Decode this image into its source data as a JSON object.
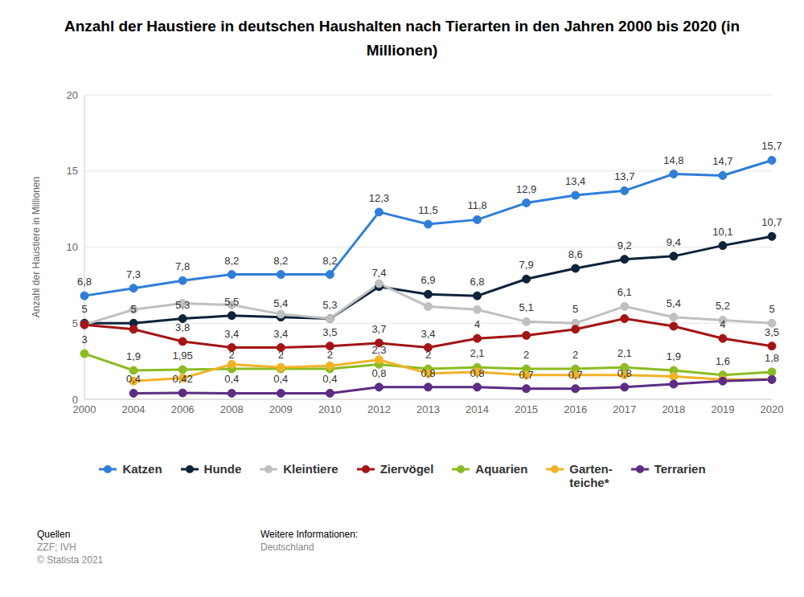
{
  "chart_data": {
    "type": "line",
    "title": "Anzahl der Haustiere in deutschen Haushalten nach Tierarten in den Jahren 2000 bis 2020 (in Millionen)",
    "y_label": "Anzahl der Haustiere in Millionen",
    "categories": [
      "2000",
      "2004",
      "2006",
      "2008",
      "2009",
      "2010",
      "2012",
      "2013",
      "2014",
      "2015",
      "2016",
      "2017",
      "2018",
      "2019",
      "2020"
    ],
    "series": [
      {
        "name": "Katzen",
        "color": "#2f7ed8",
        "values": [
          6.8,
          7.3,
          7.8,
          8.2,
          8.2,
          8.2,
          12.3,
          11.5,
          11.8,
          12.9,
          13.4,
          13.7,
          14.8,
          14.7,
          15.7
        ],
        "value_labels": [
          "6,8",
          "7,3",
          "7,8",
          "8,2",
          "8,2",
          "8,2",
          "12,3",
          "11,5",
          "11,8",
          "12,9",
          "13,4",
          "13,7",
          "14,8",
          "14,7",
          "15,7"
        ]
      },
      {
        "name": "Hunde",
        "color": "#0d233a",
        "values": [
          5,
          5,
          5.3,
          5.5,
          5.4,
          5.3,
          7.4,
          6.9,
          6.8,
          7.9,
          8.6,
          9.2,
          9.4,
          10.1,
          10.7
        ],
        "value_labels": [
          "5",
          "5",
          "5,3",
          "5,5",
          "5,4",
          "5,3",
          "7,4",
          "6,9",
          "6,8",
          "7,9",
          "8,6",
          "9,2",
          "9,4",
          "10,1",
          "10,7"
        ]
      },
      {
        "name": "Kleintiere",
        "color": "#c0c0c0",
        "values": [
          4.9,
          5.9,
          6.3,
          6.2,
          5.6,
          5.3,
          7.6,
          6.1,
          5.9,
          5.1,
          5,
          6.1,
          5.4,
          5.2,
          5
        ],
        "value_labels": [
          null,
          null,
          null,
          null,
          null,
          null,
          null,
          null,
          null,
          "5,1",
          "5",
          "6,1",
          "5,4",
          "5,2",
          "5"
        ]
      },
      {
        "name": "Ziervögel",
        "color": "#a31515",
        "values": [
          4.9,
          4.6,
          3.8,
          3.4,
          3.4,
          3.5,
          3.7,
          3.4,
          4,
          4.2,
          4.6,
          5.3,
          4.8,
          4,
          3.5
        ],
        "value_labels": [
          null,
          null,
          "3,8",
          "3,4",
          "3,4",
          "3,5",
          "3,7",
          "3,4",
          "4",
          null,
          null,
          null,
          null,
          "4",
          "3,5"
        ]
      },
      {
        "name": "Aquarien",
        "color": "#8bbc21",
        "values": [
          3,
          1.9,
          1.95,
          2,
          2,
          2,
          2.3,
          2,
          2.1,
          2,
          2,
          2.1,
          1.9,
          1.6,
          1.8
        ],
        "value_labels": [
          "3",
          "1,9",
          "1,95",
          "2",
          "2",
          "2",
          "2,3",
          "2",
          "2,1",
          "2",
          "2",
          "2,1",
          "1,9",
          "1,6",
          "1,8"
        ]
      },
      {
        "name": "Garten-teiche*",
        "color": "#f1b326",
        "values": [
          null,
          1.2,
          1.4,
          2.3,
          2.1,
          2.2,
          2.6,
          1.7,
          1.8,
          1.6,
          1.6,
          1.6,
          1.5,
          1.3,
          1.3
        ]
      },
      {
        "name": "Terrarien",
        "color": "#5c2d83",
        "values": [
          null,
          0.4,
          0.42,
          0.4,
          0.4,
          0.4,
          0.8,
          0.8,
          0.8,
          0.7,
          0.7,
          0.8,
          1,
          1.2,
          1.3
        ],
        "value_labels": [
          null,
          "0,4",
          "0,42",
          "0,4",
          "0,4",
          "0,4",
          "0,8",
          "0,8",
          "0,8",
          "0,7",
          "0,7",
          "0,8",
          null,
          null,
          null
        ]
      }
    ],
    "ylim": [
      0,
      20
    ],
    "yticks": [
      0,
      5,
      10,
      15,
      20
    ],
    "grid": true,
    "data_labels": true,
    "marker": "circle",
    "legend": "bottom",
    "source": {
      "heading": "Quellen",
      "lines": [
        "ZZF; IVH",
        "© Statista 2021"
      ]
    },
    "info": {
      "heading": "Weitere Informationen:",
      "text": "Deutschland"
    }
  }
}
